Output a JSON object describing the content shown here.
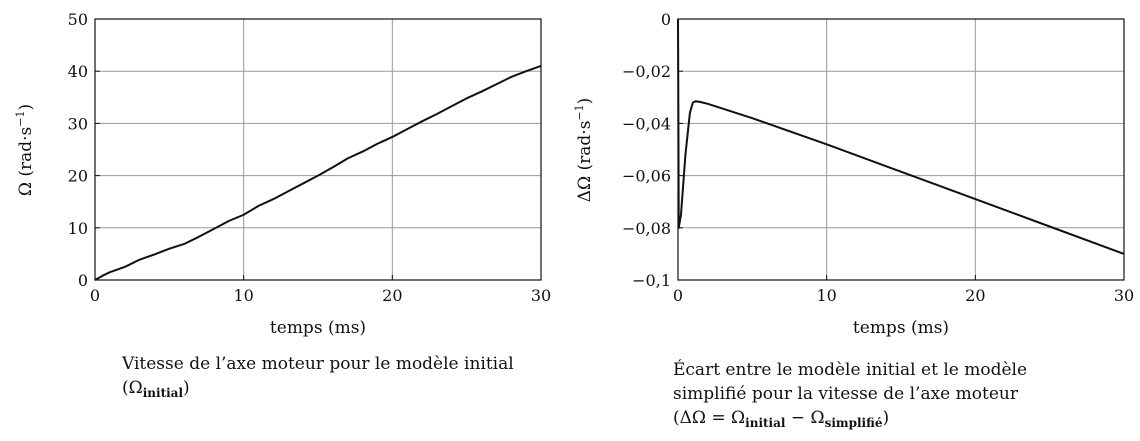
{
  "chart_data": [
    {
      "type": "line",
      "xlabel": "temps (ms)",
      "ylabel_symbol": "Ω",
      "ylabel_unit": "(rad·s",
      "ylabel_unit_exp": "−1",
      "ylabel_unit_close": ")",
      "xlim": [
        0,
        30
      ],
      "ylim": [
        0,
        50
      ],
      "x_ticks": [
        0,
        10,
        20,
        30
      ],
      "x_tick_labels": [
        "0",
        "10",
        "20",
        "30"
      ],
      "y_ticks": [
        0,
        10,
        20,
        30,
        40,
        50
      ],
      "y_tick_labels": [
        "0",
        "10",
        "20",
        "30",
        "40",
        "50"
      ],
      "grid": true,
      "series": [
        {
          "x": [
            0,
            0.5,
            1,
            1.5,
            2,
            2.5,
            3,
            4,
            5,
            6,
            7,
            8,
            9,
            10,
            11,
            12,
            13,
            14,
            15,
            16,
            17,
            18,
            19,
            20,
            21,
            22,
            23,
            24,
            25,
            26,
            27,
            28,
            29,
            30
          ],
          "values": [
            0,
            0.8,
            1.5,
            2.0,
            2.5,
            3.2,
            3.9,
            4.9,
            6.0,
            6.9,
            8.3,
            9.8,
            11.3,
            12.5,
            14.2,
            15.5,
            17.0,
            18.5,
            20.0,
            21.6,
            23.3,
            24.6,
            26.1,
            27.4,
            28.9,
            30.4,
            31.8,
            33.3,
            34.8,
            36.1,
            37.5,
            38.9,
            40.0,
            41.0
          ]
        }
      ],
      "caption_text": "Vitesse de l’axe moteur pour le modèle initial (Ω",
      "caption_sub": "initial",
      "caption_close": ")"
    },
    {
      "type": "line",
      "xlabel": "temps (ms)",
      "ylabel_symbol": "ΔΩ",
      "ylabel_unit": "(rad·s",
      "ylabel_unit_exp": "−1",
      "ylabel_unit_close": ")",
      "xlim": [
        0,
        30
      ],
      "ylim": [
        -0.1,
        0
      ],
      "x_ticks": [
        0,
        10,
        20,
        30
      ],
      "x_tick_labels": [
        "0",
        "10",
        "20",
        "30"
      ],
      "y_ticks": [
        0,
        -0.02,
        -0.04,
        -0.06,
        -0.08,
        -0.1
      ],
      "y_tick_labels": [
        "0",
        "−0,02",
        "−0,04",
        "−0,06",
        "−0,08",
        "−0,1"
      ],
      "grid": true,
      "series": [
        {
          "x": [
            0,
            0.02,
            0.05,
            0.2,
            0.5,
            0.8,
            1.0,
            1.2,
            1.5,
            2,
            5,
            10,
            15,
            20,
            25,
            30
          ],
          "values": [
            0,
            -0.028,
            -0.08,
            -0.075,
            -0.052,
            -0.036,
            -0.032,
            -0.0315,
            -0.0318,
            -0.0325,
            -0.038,
            -0.048,
            -0.0585,
            -0.069,
            -0.0795,
            -0.09
          ]
        }
      ],
      "caption_line1": "Écart entre le modèle initial et le modèle",
      "caption_line2": "simplifié pour la vitesse de l’axe moteur",
      "caption_line3_open": "(ΔΩ = Ω",
      "caption_sub1": "initial",
      "caption_mid": " − Ω",
      "caption_sub2": "simplifié",
      "caption_close": ")"
    }
  ]
}
